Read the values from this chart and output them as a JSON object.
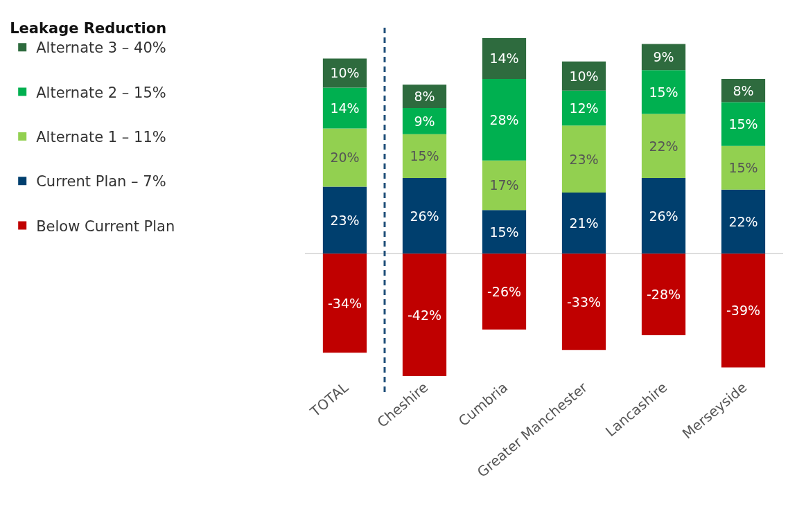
{
  "chart_data": {
    "type": "bar",
    "stacked": true,
    "legend": "left",
    "legend_title": "Leakage Reduction",
    "grid": false,
    "ylim": [
      -42,
      74
    ],
    "categories": [
      "TOTAL",
      "Cheshire",
      "Cumbria",
      "Greater Manchester",
      "Lancashire",
      "Merseyside"
    ],
    "series": [
      {
        "name": "Current Plan – 7%",
        "color": "#003f6e",
        "values": [
          23,
          26,
          15,
          21,
          26,
          22
        ],
        "value_labels": [
          "23%",
          "26%",
          "15%",
          "21%",
          "26%",
          "22%"
        ]
      },
      {
        "name": "Alternate 1 – 11%",
        "color": "#92d050",
        "values": [
          20,
          15,
          17,
          23,
          22,
          15
        ],
        "value_labels": [
          "20%",
          "15%",
          "17%",
          "23%",
          "22%",
          "15%"
        ]
      },
      {
        "name": "Alternate 2 – 15%",
        "color": "#00b050",
        "values": [
          14,
          9,
          28,
          12,
          15,
          15
        ],
        "value_labels": [
          "14%",
          "9%",
          "28%",
          "12%",
          "15%",
          "15%"
        ]
      },
      {
        "name": "Alternate 3 – 40%",
        "color": "#2e6b3e",
        "values": [
          10,
          8,
          14,
          10,
          9,
          8
        ],
        "value_labels": [
          "10%",
          "8%",
          "14%",
          "10%",
          "9%",
          "8%"
        ]
      },
      {
        "name": "Below Current Plan",
        "color": "#c00000",
        "values": [
          -34,
          -42,
          -26,
          -33,
          -28,
          -39
        ],
        "value_labels": [
          "-34%",
          "-42%",
          "-26%",
          "-33%",
          "-28%",
          "-39%"
        ]
      }
    ]
  }
}
